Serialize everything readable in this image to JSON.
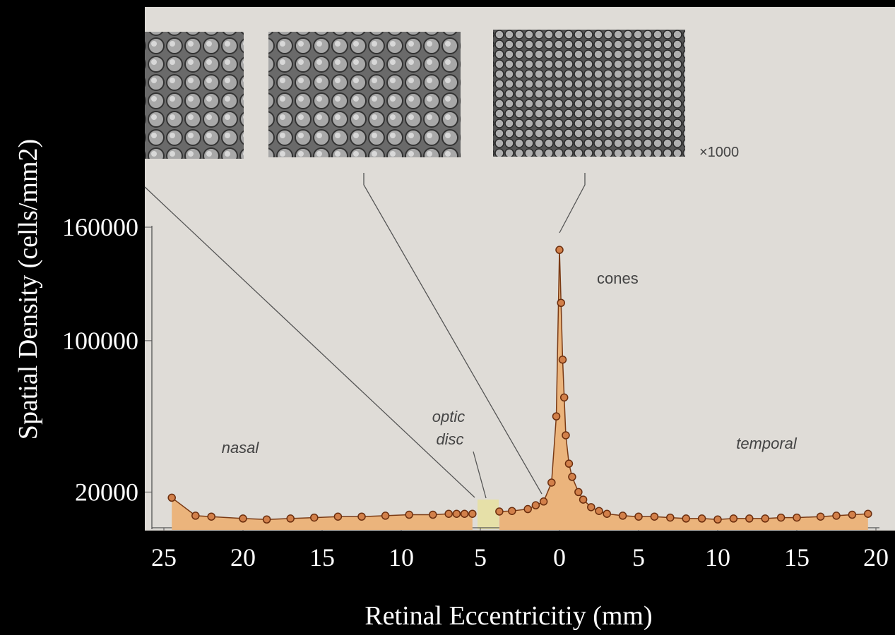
{
  "chart_data": {
    "type": "area-scatter",
    "ylabel": "Spatial Density (cells/mm2)",
    "xlabel": "Retinal Eccentricitiy (mm)",
    "annotations": [
      "×1000",
      "cones",
      "nasal",
      "optic",
      "disc",
      "temporal"
    ],
    "x": [
      -24.5,
      -23,
      -22,
      -20,
      -18.5,
      -17,
      -15.5,
      -14,
      -12.5,
      -11,
      -9.5,
      -8,
      -7,
      -6.5,
      -6,
      -5.5,
      -4.5,
      -3.8,
      -3,
      -2,
      -1.5,
      -1,
      -0.5,
      -0.2,
      0,
      0.1,
      0.2,
      0.3,
      0.4,
      0.6,
      0.8,
      1.2,
      1.5,
      2,
      2.5,
      3,
      4,
      5,
      6,
      7,
      8,
      9,
      10,
      11,
      12,
      13,
      14,
      15,
      16.5,
      17.5,
      18.5,
      19.5
    ],
    "values": [
      17000,
      7500,
      7000,
      6000,
      5500,
      6000,
      6500,
      7000,
      7000,
      7500,
      8000,
      8000,
      8500,
      8500,
      8500,
      8500,
      null,
      9700,
      10000,
      11000,
      13000,
      15000,
      25000,
      60000,
      148000,
      120000,
      90000,
      70000,
      50000,
      35000,
      28000,
      20000,
      16000,
      12000,
      10000,
      8500,
      7500,
      7000,
      7000,
      6500,
      6000,
      6000,
      5500,
      6000,
      6000,
      6000,
      6500,
      6500,
      7000,
      7500,
      8000,
      8500
    ],
    "color": "#d2804a",
    "xlim": [
      -25,
      20
    ],
    "xticks": [
      {
        "value": -25,
        "label": "25"
      },
      {
        "value": -20,
        "label": "20"
      },
      {
        "value": -15,
        "label": "15"
      },
      {
        "value": -10,
        "label": "10"
      },
      {
        "value": -5,
        "label": "5"
      },
      0,
      5,
      10,
      15,
      20
    ],
    "ylim": [
      0,
      160000
    ],
    "yticks": [
      20000,
      100000,
      160000
    ]
  }
}
